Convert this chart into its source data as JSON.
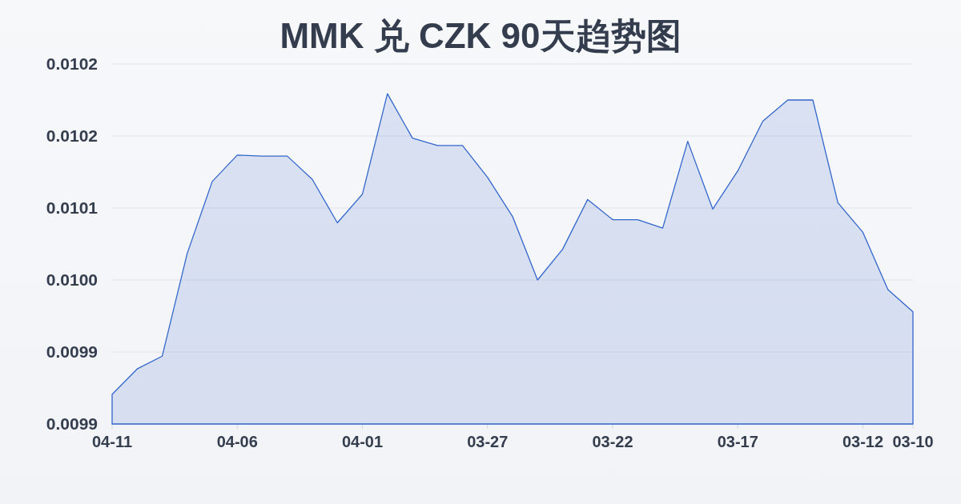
{
  "chart_data": {
    "type": "area",
    "title": "MMK 兑 CZK 90天趋势图",
    "categories": [
      "04-11",
      null,
      null,
      null,
      null,
      "04-06",
      null,
      null,
      null,
      null,
      "04-01",
      null,
      null,
      null,
      null,
      "03-27",
      null,
      null,
      null,
      null,
      "03-22",
      null,
      null,
      null,
      null,
      "03-17",
      null,
      null,
      null,
      null,
      "03-12",
      null,
      "03-10"
    ],
    "values": [
      0.009908,
      0.009932,
      0.009944,
      0.010041,
      0.010109,
      0.010134,
      0.010133,
      0.010133,
      0.010111,
      0.01007,
      0.010097,
      0.010192,
      0.01015,
      0.010143,
      0.010143,
      0.010113,
      0.010076,
      0.010016,
      0.010045,
      0.010092,
      0.010073,
      0.010073,
      0.010065,
      0.010147,
      0.010083,
      0.010119,
      0.010166,
      0.010186,
      0.010186,
      0.010089,
      0.010061,
      0.010007,
      0.009986
    ],
    "color": "#3366cc",
    "ylim": [
      0.00988,
      0.01022
    ],
    "yticks": [
      {
        "value": 0.00988,
        "label": "0.0099"
      },
      {
        "value": 0.009948,
        "label": "0.0099"
      },
      {
        "value": 0.010016,
        "label": "0.0100"
      },
      {
        "value": 0.010084,
        "label": "0.0101"
      },
      {
        "value": 0.010152,
        "label": "0.0102"
      },
      {
        "value": 0.01022,
        "label": "0.0102"
      }
    ],
    "grid": "y"
  }
}
